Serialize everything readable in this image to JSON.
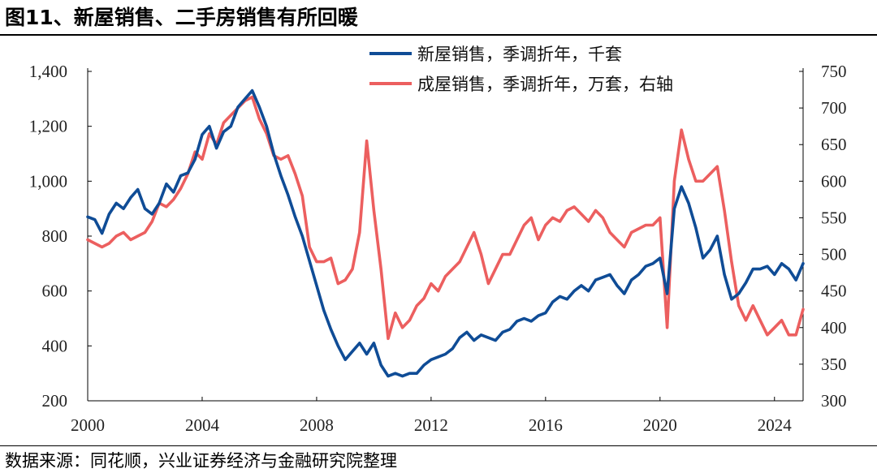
{
  "header": {
    "title": "图11、新屋销售、二手房销售有所回暖"
  },
  "footer": {
    "source": "数据来源：同花顺，兴业证券经济与金融研究院整理"
  },
  "colors": {
    "new_home": "#0f4c96",
    "existing_home": "#ec5f5f",
    "axis": "#000000"
  },
  "chart_data": {
    "type": "line",
    "title": "图11、新屋销售、二手房销售有所回暖",
    "x_ticks": [
      2000,
      2004,
      2008,
      2012,
      2016,
      2020,
      2024
    ],
    "xlim": [
      2000,
      2025
    ],
    "y_left": {
      "ticks": [
        200,
        400,
        600,
        800,
        1000,
        1200,
        1400
      ],
      "tick_labels": [
        "200",
        "400",
        "600",
        "800",
        "1,000",
        "1,200",
        "1,400"
      ],
      "lim": [
        200,
        1400
      ]
    },
    "y_right": {
      "ticks": [
        300,
        350,
        400,
        450,
        500,
        550,
        600,
        650,
        700,
        750
      ],
      "tick_labels": [
        "300",
        "350",
        "400",
        "450",
        "500",
        "550",
        "600",
        "650",
        "700",
        "750"
      ],
      "lim": [
        300,
        750
      ]
    },
    "legend_position": "top-right",
    "series": [
      {
        "name": "新屋销售，季调折年，千套",
        "axis": "left",
        "points": [
          [
            2000.0,
            870
          ],
          [
            2000.25,
            860
          ],
          [
            2000.5,
            810
          ],
          [
            2000.75,
            880
          ],
          [
            2001.0,
            920
          ],
          [
            2001.25,
            900
          ],
          [
            2001.5,
            940
          ],
          [
            2001.75,
            970
          ],
          [
            2002.0,
            900
          ],
          [
            2002.25,
            880
          ],
          [
            2002.5,
            920
          ],
          [
            2002.75,
            990
          ],
          [
            2003.0,
            960
          ],
          [
            2003.25,
            1020
          ],
          [
            2003.5,
            1030
          ],
          [
            2003.75,
            1080
          ],
          [
            2004.0,
            1170
          ],
          [
            2004.25,
            1200
          ],
          [
            2004.5,
            1120
          ],
          [
            2004.75,
            1180
          ],
          [
            2005.0,
            1200
          ],
          [
            2005.25,
            1270
          ],
          [
            2005.5,
            1300
          ],
          [
            2005.75,
            1330
          ],
          [
            2006.0,
            1270
          ],
          [
            2006.25,
            1200
          ],
          [
            2006.5,
            1100
          ],
          [
            2006.75,
            1020
          ],
          [
            2007.0,
            950
          ],
          [
            2007.25,
            870
          ],
          [
            2007.5,
            800
          ],
          [
            2007.75,
            710
          ],
          [
            2008.0,
            620
          ],
          [
            2008.25,
            530
          ],
          [
            2008.5,
            460
          ],
          [
            2008.75,
            400
          ],
          [
            2009.0,
            350
          ],
          [
            2009.25,
            380
          ],
          [
            2009.5,
            410
          ],
          [
            2009.75,
            370
          ],
          [
            2010.0,
            410
          ],
          [
            2010.25,
            330
          ],
          [
            2010.5,
            290
          ],
          [
            2010.75,
            300
          ],
          [
            2011.0,
            290
          ],
          [
            2011.25,
            300
          ],
          [
            2011.5,
            300
          ],
          [
            2011.75,
            330
          ],
          [
            2012.0,
            350
          ],
          [
            2012.25,
            360
          ],
          [
            2012.5,
            370
          ],
          [
            2012.75,
            390
          ],
          [
            2013.0,
            430
          ],
          [
            2013.25,
            450
          ],
          [
            2013.5,
            420
          ],
          [
            2013.75,
            440
          ],
          [
            2014.0,
            430
          ],
          [
            2014.25,
            420
          ],
          [
            2014.5,
            450
          ],
          [
            2014.75,
            460
          ],
          [
            2015.0,
            490
          ],
          [
            2015.25,
            500
          ],
          [
            2015.5,
            490
          ],
          [
            2015.75,
            510
          ],
          [
            2016.0,
            520
          ],
          [
            2016.25,
            560
          ],
          [
            2016.5,
            580
          ],
          [
            2016.75,
            570
          ],
          [
            2017.0,
            600
          ],
          [
            2017.25,
            620
          ],
          [
            2017.5,
            600
          ],
          [
            2017.75,
            640
          ],
          [
            2018.0,
            650
          ],
          [
            2018.25,
            660
          ],
          [
            2018.5,
            620
          ],
          [
            2018.75,
            590
          ],
          [
            2019.0,
            640
          ],
          [
            2019.25,
            660
          ],
          [
            2019.5,
            690
          ],
          [
            2019.75,
            700
          ],
          [
            2020.0,
            720
          ],
          [
            2020.25,
            590
          ],
          [
            2020.5,
            900
          ],
          [
            2020.75,
            980
          ],
          [
            2021.0,
            920
          ],
          [
            2021.25,
            830
          ],
          [
            2021.5,
            720
          ],
          [
            2021.75,
            750
          ],
          [
            2022.0,
            800
          ],
          [
            2022.25,
            660
          ],
          [
            2022.5,
            570
          ],
          [
            2022.75,
            590
          ],
          [
            2023.0,
            630
          ],
          [
            2023.25,
            680
          ],
          [
            2023.5,
            680
          ],
          [
            2023.75,
            690
          ],
          [
            2024.0,
            660
          ],
          [
            2024.25,
            700
          ],
          [
            2024.5,
            680
          ],
          [
            2024.75,
            640
          ],
          [
            2025.0,
            700
          ]
        ]
      },
      {
        "name": "成屋销售，季调折年，万套，右轴",
        "axis": "right",
        "points": [
          [
            2000.0,
            520
          ],
          [
            2000.25,
            515
          ],
          [
            2000.5,
            510
          ],
          [
            2000.75,
            515
          ],
          [
            2001.0,
            525
          ],
          [
            2001.25,
            530
          ],
          [
            2001.5,
            520
          ],
          [
            2001.75,
            525
          ],
          [
            2002.0,
            530
          ],
          [
            2002.25,
            545
          ],
          [
            2002.5,
            570
          ],
          [
            2002.75,
            565
          ],
          [
            2003.0,
            575
          ],
          [
            2003.25,
            590
          ],
          [
            2003.5,
            610
          ],
          [
            2003.75,
            640
          ],
          [
            2004.0,
            630
          ],
          [
            2004.25,
            665
          ],
          [
            2004.5,
            650
          ],
          [
            2004.75,
            680
          ],
          [
            2005.0,
            690
          ],
          [
            2005.25,
            700
          ],
          [
            2005.5,
            710
          ],
          [
            2005.75,
            715
          ],
          [
            2006.0,
            685
          ],
          [
            2006.25,
            665
          ],
          [
            2006.5,
            635
          ],
          [
            2006.75,
            630
          ],
          [
            2007.0,
            635
          ],
          [
            2007.25,
            610
          ],
          [
            2007.5,
            580
          ],
          [
            2007.75,
            510
          ],
          [
            2008.0,
            490
          ],
          [
            2008.25,
            490
          ],
          [
            2008.5,
            495
          ],
          [
            2008.75,
            460
          ],
          [
            2009.0,
            465
          ],
          [
            2009.25,
            480
          ],
          [
            2009.5,
            530
          ],
          [
            2009.75,
            655
          ],
          [
            2010.0,
            560
          ],
          [
            2010.25,
            480
          ],
          [
            2010.5,
            385
          ],
          [
            2010.75,
            420
          ],
          [
            2011.0,
            400
          ],
          [
            2011.25,
            410
          ],
          [
            2011.5,
            430
          ],
          [
            2011.75,
            440
          ],
          [
            2012.0,
            460
          ],
          [
            2012.25,
            450
          ],
          [
            2012.5,
            470
          ],
          [
            2012.75,
            480
          ],
          [
            2013.0,
            490
          ],
          [
            2013.25,
            510
          ],
          [
            2013.5,
            530
          ],
          [
            2013.75,
            500
          ],
          [
            2014.0,
            460
          ],
          [
            2014.25,
            480
          ],
          [
            2014.5,
            500
          ],
          [
            2014.75,
            500
          ],
          [
            2015.0,
            520
          ],
          [
            2015.25,
            540
          ],
          [
            2015.5,
            550
          ],
          [
            2015.75,
            520
          ],
          [
            2016.0,
            540
          ],
          [
            2016.25,
            550
          ],
          [
            2016.5,
            545
          ],
          [
            2016.75,
            560
          ],
          [
            2017.0,
            565
          ],
          [
            2017.25,
            555
          ],
          [
            2017.5,
            545
          ],
          [
            2017.75,
            560
          ],
          [
            2018.0,
            550
          ],
          [
            2018.25,
            530
          ],
          [
            2018.5,
            520
          ],
          [
            2018.75,
            510
          ],
          [
            2019.0,
            530
          ],
          [
            2019.25,
            535
          ],
          [
            2019.5,
            540
          ],
          [
            2019.75,
            540
          ],
          [
            2020.0,
            550
          ],
          [
            2020.25,
            400
          ],
          [
            2020.5,
            600
          ],
          [
            2020.75,
            670
          ],
          [
            2021.0,
            630
          ],
          [
            2021.25,
            600
          ],
          [
            2021.5,
            600
          ],
          [
            2021.75,
            610
          ],
          [
            2022.0,
            620
          ],
          [
            2022.25,
            560
          ],
          [
            2022.5,
            490
          ],
          [
            2022.75,
            430
          ],
          [
            2023.0,
            410
          ],
          [
            2023.25,
            430
          ],
          [
            2023.5,
            410
          ],
          [
            2023.75,
            390
          ],
          [
            2024.0,
            400
          ],
          [
            2024.25,
            410
          ],
          [
            2024.5,
            390
          ],
          [
            2024.75,
            390
          ],
          [
            2025.0,
            425
          ]
        ]
      }
    ]
  }
}
